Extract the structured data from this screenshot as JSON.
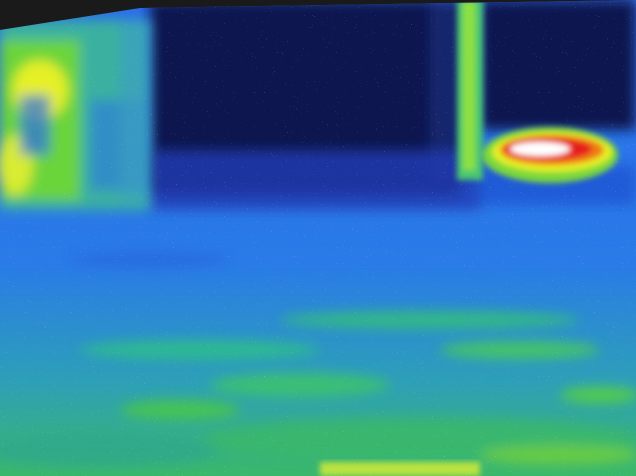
{
  "image": {
    "kind": "thermal-camera-view",
    "description_free": true,
    "palette": {
      "frame": "#1a1a1a",
      "cold_dark": "#0a1450",
      "cold": "#1a3fd8",
      "cool": "#2a78f0",
      "mild": "#2fbf8a",
      "warm_green": "#5ad43a",
      "warm_yellow": "#e6f028",
      "hot_orange": "#f07a18",
      "hot_red": "#e61e1e",
      "hottest": "#ffffff"
    }
  }
}
